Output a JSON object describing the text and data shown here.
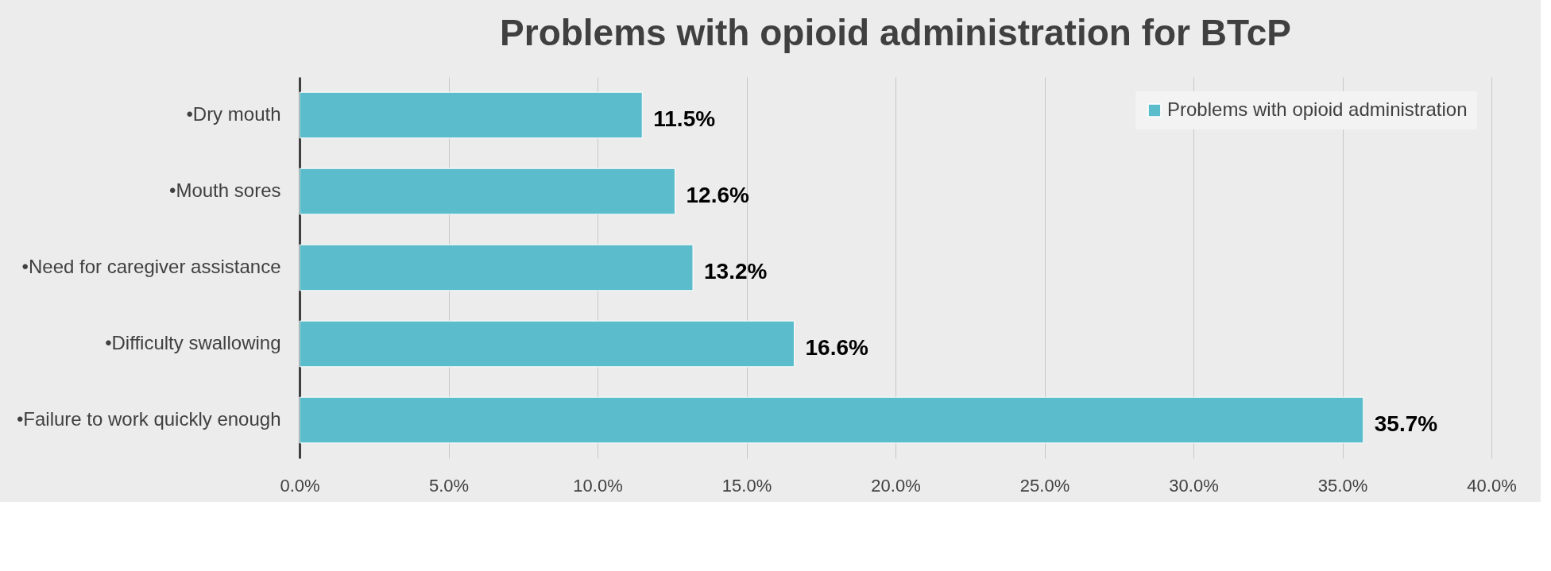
{
  "chart_data": {
    "type": "bar",
    "orientation": "horizontal",
    "title": "Problems with opioid administration for BTcP",
    "categories": [
      "•Dry mouth",
      "•Mouth sores",
      "•Need for caregiver assistance",
      "•Difficulty swallowing",
      "•Failure to work quickly enough"
    ],
    "series": [
      {
        "name": "Problems with opioid administration",
        "color": "#5bbccb",
        "values": [
          11.5,
          12.6,
          13.2,
          16.6,
          35.7
        ],
        "value_labels": [
          "11.5%",
          "12.6%",
          "13.2%",
          "16.6%",
          "35.7%"
        ]
      }
    ],
    "xlim": [
      0,
      40
    ],
    "xticks": [
      {
        "value": 0,
        "label": "0.0%"
      },
      {
        "value": 5,
        "label": "5.0%"
      },
      {
        "value": 10,
        "label": "10.0%"
      },
      {
        "value": 15,
        "label": "15.0%"
      },
      {
        "value": 20,
        "label": "20.0%"
      },
      {
        "value": 25,
        "label": "25.0%"
      },
      {
        "value": 30,
        "label": "30.0%"
      },
      {
        "value": 35,
        "label": "35.0%"
      },
      {
        "value": 40,
        "label": "40.0%"
      }
    ],
    "grid": "x",
    "legend": "top right"
  }
}
